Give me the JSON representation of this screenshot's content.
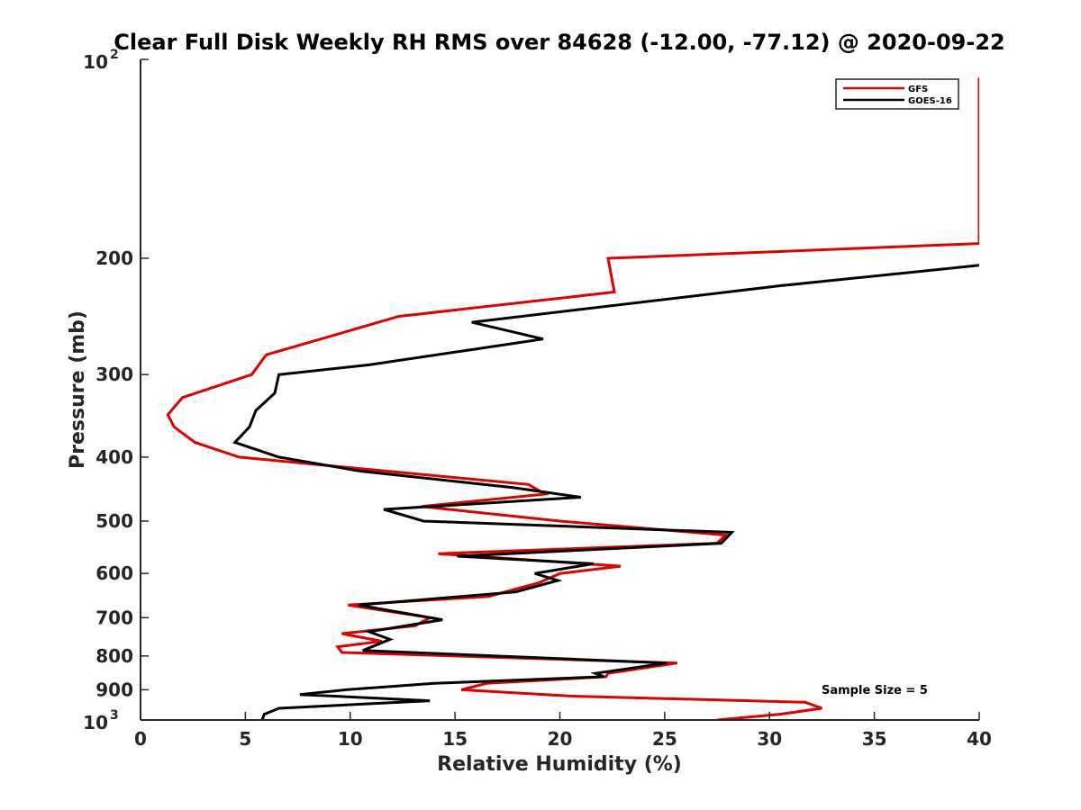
{
  "chart_data": {
    "type": "line",
    "title": "Clear Full Disk Weekly RH RMS over 84628 (-12.00, -77.12) @ 2020-09-22",
    "xlabel": "Relative Humidity (%)",
    "ylabel": "Pressure (mb)",
    "xlim": [
      0,
      40
    ],
    "ylim": [
      100,
      1000
    ],
    "yscale": "log",
    "yreversed": true,
    "x_ticks": [
      0,
      5,
      10,
      15,
      20,
      25,
      30,
      35,
      40
    ],
    "x_tick_labels": [
      "0",
      "5",
      "10",
      "15",
      "20",
      "25",
      "30",
      "35",
      "40"
    ],
    "y_ticks": [
      200,
      300,
      400,
      500,
      600,
      700,
      800,
      900
    ],
    "y_tick_labels": [
      "200",
      "300",
      "400",
      "500",
      "600",
      "700",
      "800",
      "900"
    ],
    "y_top_label": {
      "base": "10",
      "exp": "2"
    },
    "y_bottom_label": {
      "base": "10",
      "exp": "3"
    },
    "legend_position": "top-right",
    "annotation": "Sample Size = 5",
    "series": [
      {
        "name": "GFS",
        "color": "#e00000",
        "points": [
          [
            41,
            106
          ],
          [
            40,
            107
          ],
          [
            40,
            190
          ],
          [
            22.3,
            200
          ],
          [
            22.6,
            225
          ],
          [
            12.3,
            245
          ],
          [
            8.6,
            265
          ],
          [
            6.0,
            280
          ],
          [
            5.3,
            300
          ],
          [
            2.0,
            325
          ],
          [
            1.3,
            345
          ],
          [
            1.6,
            360
          ],
          [
            2.6,
            380
          ],
          [
            4.7,
            400
          ],
          [
            10,
            415
          ],
          [
            18.5,
            440
          ],
          [
            19.3,
            455
          ],
          [
            13.4,
            475
          ],
          [
            20,
            500
          ],
          [
            27.9,
            525
          ],
          [
            27.5,
            540
          ],
          [
            14.2,
            560
          ],
          [
            22.9,
            585
          ],
          [
            20.0,
            600
          ],
          [
            19.0,
            620
          ],
          [
            16.6,
            650
          ],
          [
            9.9,
            670
          ],
          [
            13.8,
            700
          ],
          [
            13.1,
            720
          ],
          [
            9.6,
            740
          ],
          [
            11.5,
            760
          ],
          [
            9.4,
            775
          ],
          [
            9.6,
            790
          ],
          [
            25.6,
            820
          ],
          [
            22.3,
            850
          ],
          [
            22.2,
            860
          ],
          [
            16.5,
            880
          ],
          [
            15.3,
            900
          ],
          [
            20.5,
            920
          ],
          [
            31.7,
            940
          ],
          [
            32.5,
            960
          ],
          [
            30.5,
            980
          ],
          [
            27.5,
            1000
          ]
        ]
      },
      {
        "name": "GOES-16",
        "color": "#000000",
        "points": [
          [
            40,
            205
          ],
          [
            30.6,
            220
          ],
          [
            15.8,
            250
          ],
          [
            19.2,
            265
          ],
          [
            10.9,
            290
          ],
          [
            6.6,
            300
          ],
          [
            6.4,
            320
          ],
          [
            5.5,
            340
          ],
          [
            5.2,
            360
          ],
          [
            4.5,
            380
          ],
          [
            6.6,
            400
          ],
          [
            10.5,
            420
          ],
          [
            17.8,
            445
          ],
          [
            21,
            460
          ],
          [
            11.6,
            480
          ],
          [
            13.5,
            500
          ],
          [
            28.2,
            520
          ],
          [
            27.7,
            540
          ],
          [
            15.1,
            565
          ],
          [
            21.6,
            580
          ],
          [
            18.8,
            600
          ],
          [
            19.9,
            615
          ],
          [
            17.9,
            640
          ],
          [
            10.4,
            670
          ],
          [
            14.4,
            705
          ],
          [
            10.9,
            735
          ],
          [
            11.9,
            755
          ],
          [
            10.6,
            785
          ],
          [
            25.1,
            820
          ],
          [
            21.7,
            850
          ],
          [
            22.1,
            860
          ],
          [
            14.0,
            880
          ],
          [
            9.8,
            900
          ],
          [
            7.6,
            915
          ],
          [
            13.8,
            935
          ],
          [
            6.6,
            960
          ],
          [
            5.9,
            980
          ],
          [
            5.8,
            1000
          ]
        ]
      }
    ]
  }
}
